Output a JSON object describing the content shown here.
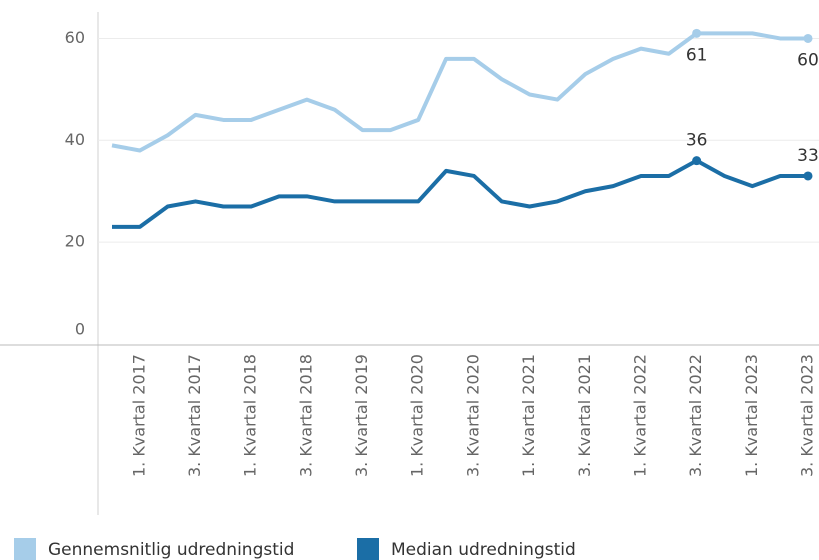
{
  "chart_data": {
    "type": "line",
    "categories": [
      null,
      "1. Kvartal 2017",
      null,
      "3. Kvartal 2017",
      null,
      "1. Kvartal 2018",
      null,
      "3. Kvartal 2018",
      null,
      "3. Kvartal 2019",
      null,
      "1. Kvartal 2020",
      null,
      "3. Kvartal 2020",
      null,
      "1. Kvartal 2021",
      null,
      "3. Kvartal 2021",
      null,
      "1. Kvartal 2022",
      null,
      "3. Kvartal 2022",
      null,
      "1. Kvartal 2023",
      null,
      "3. Kvartal 2023"
    ],
    "series": [
      {
        "name": "Gennemsnitlig udredningstid",
        "color": "#a6cde9",
        "values": [
          39,
          38,
          41,
          45,
          44,
          44,
          46,
          48,
          46,
          42,
          42,
          44,
          56,
          56,
          52,
          49,
          48,
          53,
          56,
          58,
          57,
          61,
          61,
          61,
          60,
          60
        ],
        "value_labels": [
          null,
          null,
          null,
          null,
          null,
          null,
          null,
          null,
          null,
          null,
          null,
          null,
          null,
          null,
          null,
          null,
          null,
          null,
          null,
          null,
          null,
          61,
          null,
          null,
          null,
          60
        ]
      },
      {
        "name": "Median udredningstid",
        "color": "#1b6ea6",
        "values": [
          23,
          23,
          27,
          28,
          27,
          27,
          29,
          29,
          28,
          28,
          28,
          28,
          34,
          33,
          28,
          27,
          28,
          30,
          31,
          33,
          33,
          36,
          33,
          31,
          33,
          33
        ],
        "value_labels": [
          null,
          null,
          null,
          null,
          null,
          null,
          null,
          null,
          null,
          null,
          null,
          null,
          null,
          null,
          null,
          null,
          null,
          null,
          null,
          null,
          null,
          36,
          null,
          null,
          null,
          33
        ]
      }
    ],
    "ylim": [
      0,
      65
    ],
    "yticks": [
      0,
      20,
      40,
      60
    ],
    "grid": true,
    "legend": "bottom"
  }
}
